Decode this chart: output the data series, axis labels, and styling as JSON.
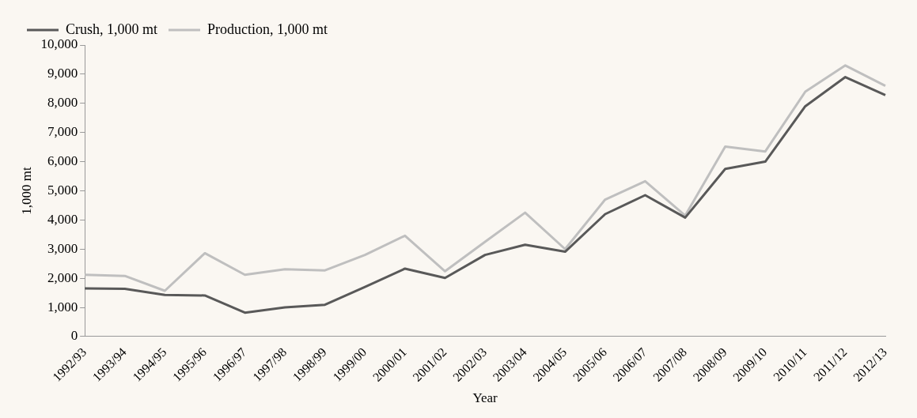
{
  "chart_data": {
    "type": "line",
    "xlabel": "Year",
    "ylabel": "1,000 mt",
    "categories": [
      "1992/93",
      "1993/94",
      "1994/95",
      "1995/96",
      "1996/97",
      "1997/98",
      "1998/99",
      "1999/00",
      "2000/01",
      "2001/02",
      "2002/03",
      "2003/04",
      "2004/05",
      "2005/06",
      "2006/07",
      "2007/08",
      "2008/09",
      "2009/10",
      "2010/11",
      "2011/12",
      "2012/13"
    ],
    "series": [
      {
        "name": "Crush, 1,000 mt",
        "color": "#595959",
        "values": [
          1650,
          1640,
          1430,
          1410,
          820,
          1000,
          1090,
          1700,
          2330,
          2010,
          2800,
          3150,
          2910,
          4200,
          4850,
          4080,
          5750,
          6000,
          7900,
          8900,
          8280
        ]
      },
      {
        "name": "Production, 1,000 mt",
        "color": "#bfbfbf",
        "values": [
          2120,
          2080,
          1570,
          2860,
          2120,
          2310,
          2270,
          2800,
          3460,
          2240,
          3250,
          4250,
          3000,
          4700,
          5330,
          4150,
          6520,
          6350,
          8400,
          9300,
          8600
        ]
      }
    ],
    "ylim": [
      0,
      10000
    ],
    "yticks": [
      {
        "value": 0,
        "label": "0"
      },
      {
        "value": 1000,
        "label": "1,000"
      },
      {
        "value": 2000,
        "label": "2,000"
      },
      {
        "value": 3000,
        "label": "3,000"
      },
      {
        "value": 4000,
        "label": "4,000"
      },
      {
        "value": 5000,
        "label": "5,000"
      },
      {
        "value": 6000,
        "label": "6,000"
      },
      {
        "value": 7000,
        "label": "7,000"
      },
      {
        "value": 8000,
        "label": "8,000"
      },
      {
        "value": 9000,
        "label": "9,000"
      },
      {
        "value": 10000,
        "label": "10,000"
      }
    ],
    "grid": false,
    "legend": "top left",
    "marker": "none",
    "line_style": "solid"
  }
}
